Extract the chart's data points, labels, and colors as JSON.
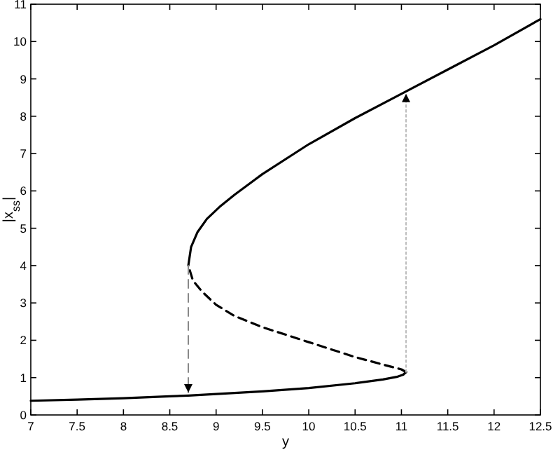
{
  "chart_data": {
    "type": "line",
    "xlabel": "y",
    "ylabel": "|x$_{ss}$|",
    "xlim": [
      7,
      12.5
    ],
    "ylim": [
      0,
      11
    ],
    "xticks": [
      7,
      7.5,
      8,
      8.5,
      9,
      9.5,
      10,
      10.5,
      11,
      11.5,
      12,
      12.5
    ],
    "yticks": [
      0,
      1,
      2,
      3,
      4,
      5,
      6,
      7,
      8,
      9,
      10,
      11
    ],
    "grid": false,
    "series": [
      {
        "color": "#000000",
        "line_style": "solid",
        "x": [
          7,
          7.5,
          8,
          8.5,
          8.7,
          9,
          9.5,
          10,
          10.5,
          10.8,
          10.95,
          11.02,
          11.05
        ],
        "values": [
          0.38,
          0.41,
          0.45,
          0.5,
          0.52,
          0.56,
          0.63,
          0.72,
          0.85,
          0.95,
          1.02,
          1.08,
          1.15
        ]
      },
      {
        "color": "#000000",
        "line_style": "dashed",
        "x": [
          11.05,
          11.0,
          10.8,
          10.5,
          10,
          9.5,
          9.2,
          9.0,
          8.85,
          8.75,
          8.7
        ],
        "values": [
          1.15,
          1.22,
          1.35,
          1.55,
          1.95,
          2.35,
          2.65,
          2.95,
          3.3,
          3.6,
          4.0
        ]
      },
      {
        "color": "#000000",
        "line_style": "solid",
        "x": [
          8.7,
          8.73,
          8.8,
          8.9,
          9.05,
          9.2,
          9.5,
          10,
          10.5,
          11,
          11.5,
          12,
          12.5
        ],
        "values": [
          4.0,
          4.5,
          4.9,
          5.25,
          5.6,
          5.9,
          6.45,
          7.25,
          7.95,
          8.6,
          9.25,
          9.9,
          10.6
        ]
      },
      {
        "color": "#888888",
        "line_style": "dashed",
        "x": [
          8.7,
          8.7
        ],
        "values": [
          4.0,
          0.6
        ]
      },
      {
        "color": "#bbbbbb",
        "line_style": "dotted",
        "x": [
          11.05,
          11.05
        ],
        "values": [
          1.15,
          8.6
        ]
      }
    ]
  }
}
